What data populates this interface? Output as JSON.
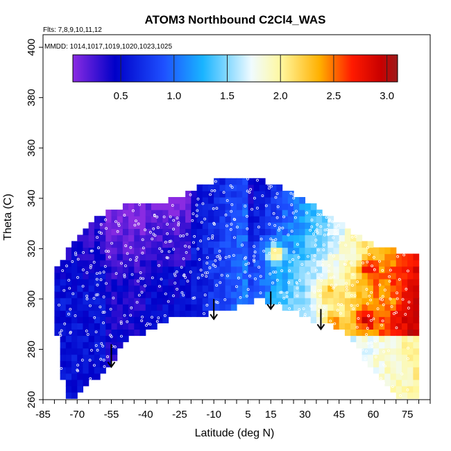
{
  "chart_data": {
    "type": "heatmap",
    "title": "ATOM3 Northbound C2Cl4_WAS",
    "xlabel": "Latitude (deg N)",
    "ylabel": "Theta (C)",
    "xlim": [
      -85,
      85
    ],
    "ylim": [
      260,
      405
    ],
    "x_ticks": [
      -85,
      -70,
      -55,
      -40,
      -25,
      -10,
      5,
      15,
      30,
      45,
      60,
      75
    ],
    "x_tick_labels": [
      "-85",
      "-70",
      "-55",
      "-40",
      "-25",
      "-10",
      "5",
      "15",
      "30",
      "45",
      "60",
      "75"
    ],
    "y_ticks": [
      260,
      280,
      300,
      320,
      340,
      360,
      380,
      400
    ],
    "y_tick_labels": [
      "260",
      "280",
      "300",
      "320",
      "340",
      "360",
      "380",
      "400"
    ],
    "annotations": {
      "flights": "Flts: 7,8,9,10,11,12",
      "mmdd": "MMDD: 1014,1017,1019,1020,1023,1025"
    },
    "colorbar": {
      "range": [
        0.05,
        3.1
      ],
      "ticks": [
        0.5,
        1.0,
        1.5,
        2.0,
        2.5,
        3.0
      ],
      "tick_labels": [
        "0.5",
        "1.0",
        "1.5",
        "2.0",
        "2.5",
        "3.0"
      ],
      "colors": [
        "#8a2be2",
        "#0000c8",
        "#1e50ff",
        "#19b4ff",
        "#f0fbff",
        "#fff8a0",
        "#ffb000",
        "#ff1a00",
        "#c80000",
        "#9b1c1c"
      ]
    },
    "upper_boundary": [
      [
        -80,
        311
      ],
      [
        -75,
        318
      ],
      [
        -70,
        323
      ],
      [
        -65,
        329
      ],
      [
        -60,
        333
      ],
      [
        -55,
        335
      ],
      [
        -50,
        337
      ],
      [
        -45,
        338
      ],
      [
        -40,
        338
      ],
      [
        -35,
        338
      ],
      [
        -30,
        339
      ],
      [
        -25,
        341
      ],
      [
        -20,
        343
      ],
      [
        -15,
        345
      ],
      [
        -10,
        347
      ],
      [
        -5,
        348
      ],
      [
        0,
        348
      ],
      [
        5,
        348
      ],
      [
        10,
        347
      ],
      [
        15,
        346
      ],
      [
        20,
        344
      ],
      [
        25,
        342
      ],
      [
        30,
        339
      ],
      [
        35,
        336
      ],
      [
        40,
        333
      ],
      [
        45,
        330
      ],
      [
        50,
        327
      ],
      [
        55,
        324
      ],
      [
        60,
        322
      ],
      [
        65,
        320
      ],
      [
        70,
        319
      ],
      [
        75,
        318
      ],
      [
        79,
        318
      ]
    ],
    "lower_boundary": [
      [
        -80,
        298
      ],
      [
        -77,
        270
      ],
      [
        -74,
        260
      ],
      [
        -70,
        262
      ],
      [
        -65,
        266
      ],
      [
        -60,
        270
      ],
      [
        -55,
        275
      ],
      [
        -50,
        282
      ],
      [
        -45,
        286
      ],
      [
        -40,
        287
      ],
      [
        -35,
        290
      ],
      [
        -30,
        292
      ],
      [
        -25,
        292
      ],
      [
        -20,
        293
      ],
      [
        -15,
        294
      ],
      [
        -10,
        295
      ],
      [
        -5,
        296
      ],
      [
        0,
        297
      ],
      [
        5,
        298
      ],
      [
        10,
        300
      ],
      [
        15,
        299
      ],
      [
        20,
        297
      ],
      [
        25,
        295
      ],
      [
        30,
        293
      ],
      [
        35,
        291
      ],
      [
        40,
        290
      ],
      [
        45,
        288
      ],
      [
        50,
        285
      ],
      [
        55,
        278
      ],
      [
        60,
        272
      ],
      [
        65,
        266
      ],
      [
        70,
        262
      ],
      [
        75,
        260
      ],
      [
        79,
        260
      ]
    ],
    "hotspots": [
      {
        "lat": 17,
        "theta": 318,
        "value": 2.2
      },
      {
        "lat": 40,
        "theta": 303,
        "value": 2.3
      },
      {
        "lat": 42,
        "theta": 290,
        "value": 2.6
      },
      {
        "lat": 57,
        "theta": 292,
        "value": 2.9
      },
      {
        "lat": 58,
        "theta": 313,
        "value": 2.8
      },
      {
        "lat": 63,
        "theta": 307,
        "value": 2.5
      },
      {
        "lat": 67,
        "theta": 300,
        "value": 2.4
      },
      {
        "lat": 51,
        "theta": 318,
        "value": 1.9
      }
    ],
    "arrows": [
      {
        "lat": -55,
        "theta_top": 282,
        "theta_bottom": 273
      },
      {
        "lat": -10,
        "theta_top": 300,
        "theta_bottom": 292
      },
      {
        "lat": 15,
        "theta_top": 303,
        "theta_bottom": 296
      },
      {
        "lat": 37,
        "theta_top": 296,
        "theta_bottom": 288
      }
    ]
  }
}
